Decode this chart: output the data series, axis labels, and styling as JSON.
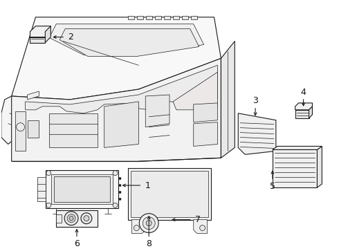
{
  "background_color": "#ffffff",
  "line_color": "#1a1a1a",
  "fig_width": 4.9,
  "fig_height": 3.6,
  "dpi": 100,
  "callout_fontsize": 9,
  "text_color": "#111111"
}
